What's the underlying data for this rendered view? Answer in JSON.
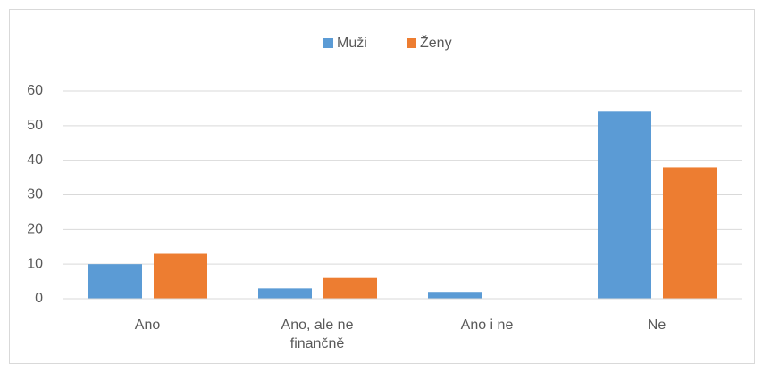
{
  "chart_data": {
    "type": "bar",
    "categories": [
      "Ano",
      "Ano, ale ne finančně",
      "Ano i ne",
      "Ne"
    ],
    "series": [
      {
        "name": "Muži",
        "color": "#5b9bd5",
        "values": [
          10,
          3,
          2,
          54
        ]
      },
      {
        "name": "Ženy",
        "color": "#ed7d31",
        "values": [
          13,
          6,
          0,
          38
        ]
      }
    ],
    "ylim": [
      0,
      60
    ],
    "yticks": [
      0,
      10,
      20,
      30,
      40,
      50,
      60
    ],
    "grid": true,
    "legend": "top"
  }
}
